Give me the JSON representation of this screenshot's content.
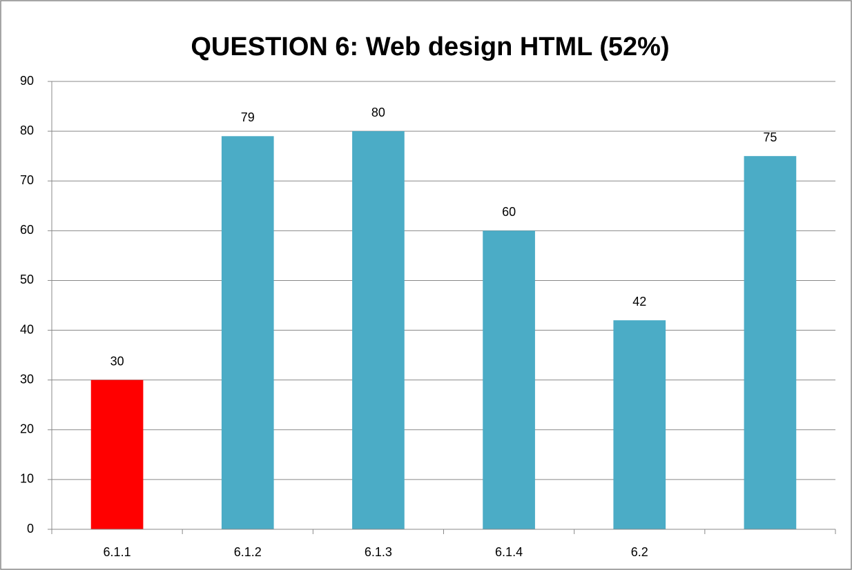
{
  "chart_data": {
    "type": "bar",
    "title": "QUESTION 6:  Web design HTML (52%)",
    "categories": [
      "6.1.1",
      "6.1.2",
      "6.1.3",
      "6.1.4",
      "6.2",
      null
    ],
    "values": [
      30,
      79,
      80,
      60,
      42,
      75
    ],
    "colors": [
      "#ff0000",
      "#4bacc6",
      "#4bacc6",
      "#4bacc6",
      "#4bacc6",
      "#4bacc6"
    ],
    "ylim": [
      0,
      90
    ],
    "yticks": [
      0,
      10,
      20,
      30,
      40,
      50,
      60,
      70,
      80,
      90
    ],
    "grid": true
  }
}
